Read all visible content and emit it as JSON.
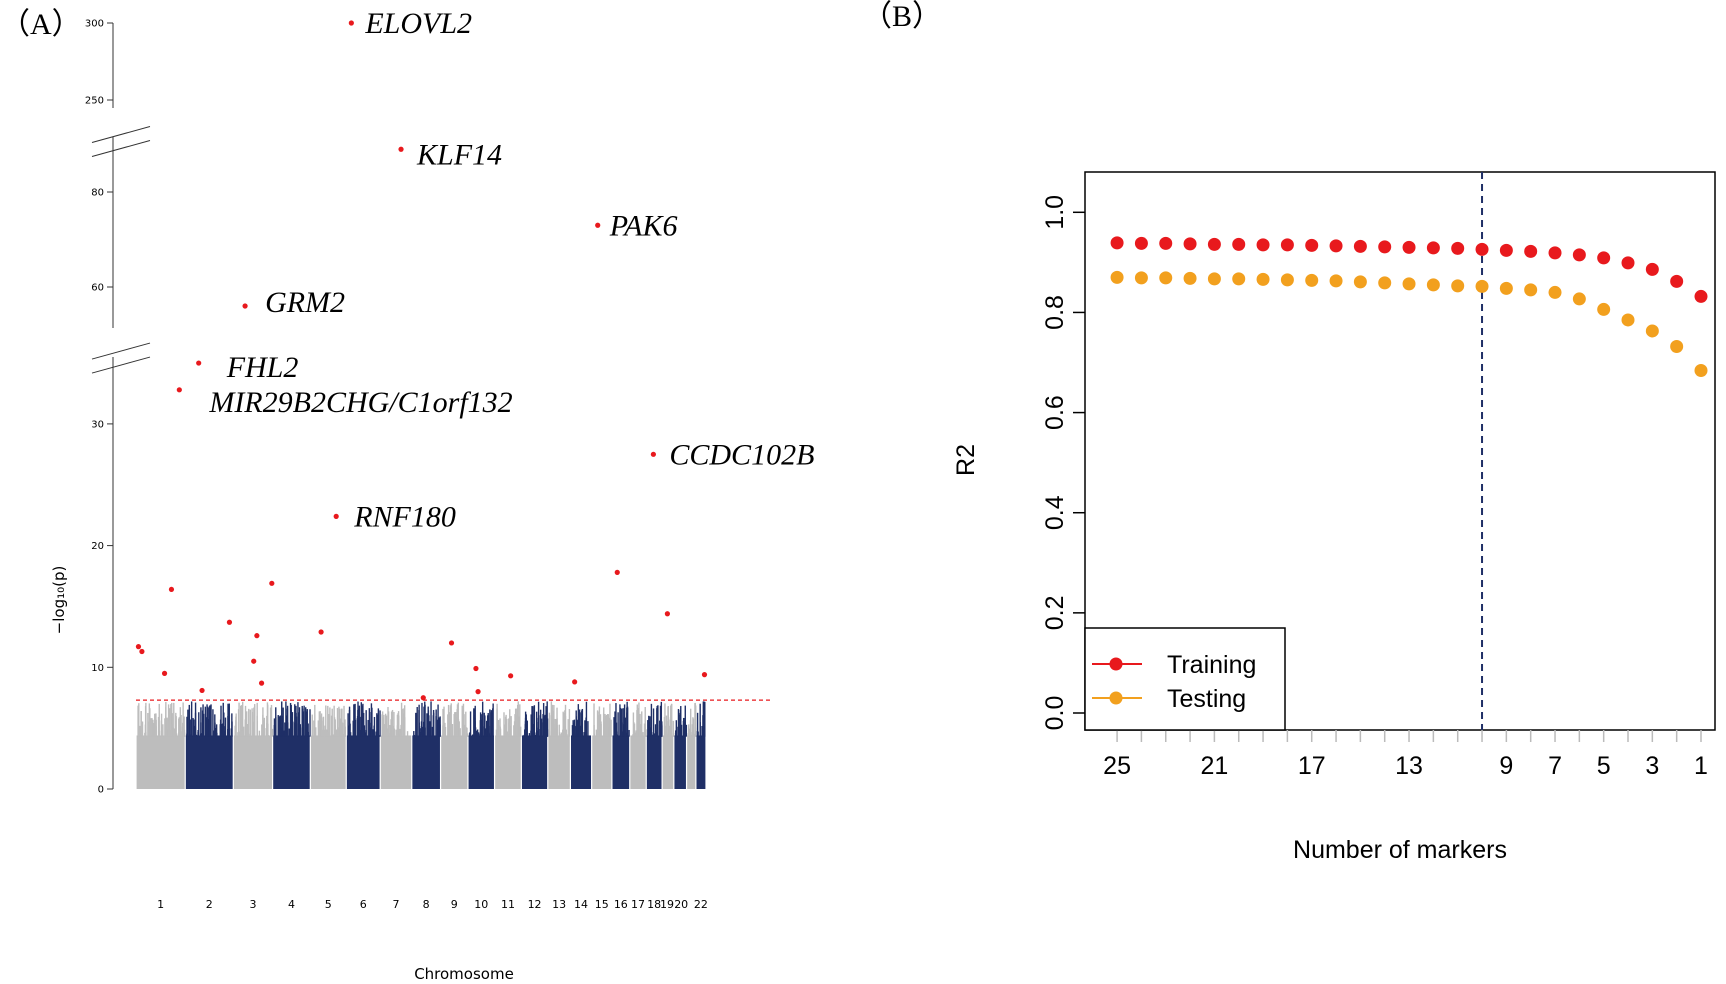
{
  "panels": {
    "a_label": "（A）",
    "b_label": "（B）"
  },
  "colors": {
    "chrom_odd": "#bdbdbd",
    "chrom_even": "#1f2f66",
    "hit": "#e8191d",
    "threshold": "#e8191d",
    "training": "#e8191d",
    "testing": "#f2a01e",
    "vline": "#1f2f66"
  },
  "chart_data": [
    {
      "type": "scatter",
      "chart_kind": "manhattan",
      "xlabel": "Chromosome",
      "ylabel": "−log₁₀(p)",
      "y_axis_breaks": [
        [
          35,
          55
        ],
        [
          90,
          250
        ]
      ],
      "y_ticks": [
        0,
        10,
        20,
        30,
        60,
        80,
        250,
        300
      ],
      "chromosomes": [
        "1",
        "2",
        "3",
        "4",
        "5",
        "6",
        "7",
        "8",
        "9",
        "10",
        "11",
        "12",
        "13",
        "14",
        "15",
        "16",
        "17",
        "18",
        "19",
        "20",
        "21",
        "22"
      ],
      "chromosome_tick_labels": [
        "1",
        "2",
        "3",
        "4",
        "5",
        "6",
        "7",
        "8",
        "9",
        "10",
        "11",
        "12",
        "13",
        "14",
        "15",
        "16",
        "17",
        "18",
        "19",
        "20",
        "22"
      ],
      "threshold": 7.3,
      "top_hits": [
        {
          "gene": "ELOVL2",
          "chrom": "6",
          "neglog10p": 300
        },
        {
          "gene": "KLF14",
          "chrom": "7",
          "neglog10p": 89
        },
        {
          "gene": "PAK6",
          "chrom": "15",
          "neglog10p": 73
        },
        {
          "gene": "GRM2",
          "chrom": "3",
          "neglog10p": 56
        },
        {
          "gene": "FHL2",
          "chrom": "2",
          "neglog10p": 35
        },
        {
          "gene": "MIR29B2CHG/C1orf132",
          "chrom": "1",
          "neglog10p": 32.8
        },
        {
          "gene": "CCDC102B",
          "chrom": "18",
          "neglog10p": 27.5
        },
        {
          "gene": "RNF180",
          "chrom": "5",
          "neglog10p": 22.4
        }
      ],
      "other_hits": [
        {
          "chrom": "1",
          "neglog10p": 11.7
        },
        {
          "chrom": "1",
          "neglog10p": 11.3
        },
        {
          "chrom": "1",
          "neglog10p": 9.5
        },
        {
          "chrom": "1",
          "neglog10p": 16.4
        },
        {
          "chrom": "2",
          "neglog10p": 8.1
        },
        {
          "chrom": "2",
          "neglog10p": 13.7
        },
        {
          "chrom": "3",
          "neglog10p": 12.6
        },
        {
          "chrom": "3",
          "neglog10p": 10.5
        },
        {
          "chrom": "3",
          "neglog10p": 16.9
        },
        {
          "chrom": "3",
          "neglog10p": 8.7
        },
        {
          "chrom": "5",
          "neglog10p": 12.9
        },
        {
          "chrom": "8",
          "neglog10p": 7.5
        },
        {
          "chrom": "9",
          "neglog10p": 12.0
        },
        {
          "chrom": "10",
          "neglog10p": 9.9
        },
        {
          "chrom": "10",
          "neglog10p": 8.0
        },
        {
          "chrom": "11",
          "neglog10p": 9.3
        },
        {
          "chrom": "14",
          "neglog10p": 8.8
        },
        {
          "chrom": "16",
          "neglog10p": 17.8
        },
        {
          "chrom": "19",
          "neglog10p": 14.4
        },
        {
          "chrom": "22",
          "neglog10p": 9.4
        }
      ]
    },
    {
      "type": "scatter",
      "xlabel": "Number of markers",
      "ylabel": "R2",
      "xlim": [
        25,
        1
      ],
      "ylim": [
        0,
        1
      ],
      "x_tick_labels": [
        "25",
        "21",
        "17",
        "13",
        "9",
        "7",
        "5",
        "3",
        "1"
      ],
      "y_tick_labels": [
        "0.0",
        "0.2",
        "0.4",
        "0.6",
        "0.8",
        "1.0"
      ],
      "vline_x": 10,
      "legend_position": "bottom-left",
      "x": [
        25,
        24,
        23,
        22,
        21,
        20,
        19,
        18,
        17,
        16,
        15,
        14,
        13,
        12,
        11,
        10,
        9,
        8,
        7,
        6,
        5,
        4,
        3,
        2,
        1
      ],
      "series": [
        {
          "name": "Training",
          "values": [
            0.939,
            0.938,
            0.938,
            0.937,
            0.936,
            0.936,
            0.935,
            0.935,
            0.934,
            0.933,
            0.932,
            0.931,
            0.93,
            0.929,
            0.928,
            0.926,
            0.924,
            0.922,
            0.919,
            0.915,
            0.909,
            0.899,
            0.886,
            0.862,
            0.832
          ]
        },
        {
          "name": "Testing",
          "values": [
            0.87,
            0.869,
            0.869,
            0.868,
            0.867,
            0.867,
            0.866,
            0.865,
            0.864,
            0.863,
            0.861,
            0.859,
            0.857,
            0.855,
            0.853,
            0.852,
            0.848,
            0.845,
            0.84,
            0.827,
            0.806,
            0.785,
            0.763,
            0.732,
            0.684
          ]
        }
      ]
    }
  ]
}
